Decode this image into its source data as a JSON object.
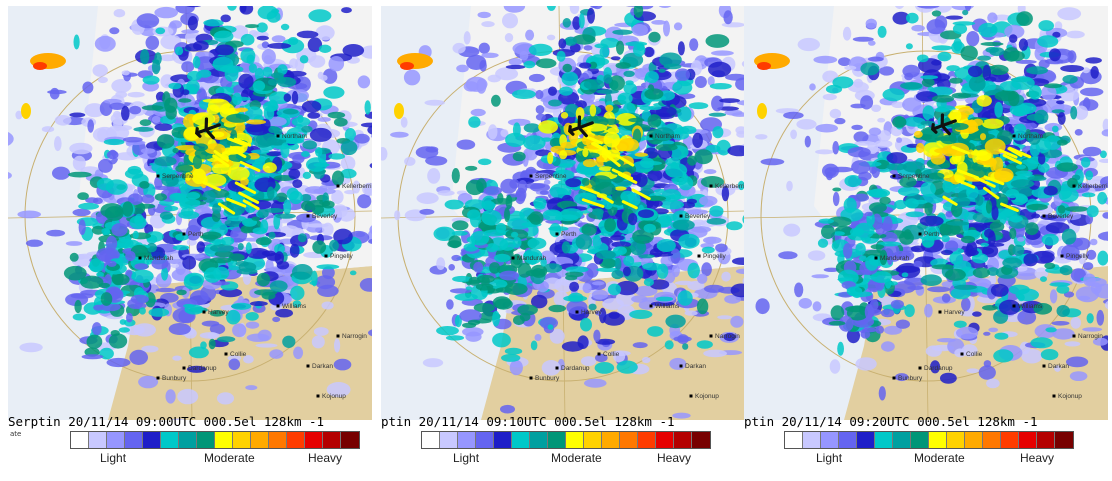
{
  "panels": [
    {
      "caption": "Serptin 20/11/14 09:00UTC 000.5el 128km -1",
      "site_fragment": "ate",
      "places": [
        "Serpentine",
        "Perth",
        "Mandurah",
        "Harvey",
        "Collie",
        "Bunbury",
        "Dardanup",
        "Darkan",
        "Narrogin",
        "Pingelly",
        "Kellerberrin",
        "Northam",
        "Beverley",
        "Williams",
        "Kojonup"
      ]
    },
    {
      "caption": "ptin 20/11/14 09:10UTC 000.5el 128km -1",
      "site_fragment": "",
      "places": [
        "Serpentine",
        "Perth",
        "Mandurah",
        "Harvey",
        "Collie",
        "Bunbury",
        "Dardanup",
        "Darkan",
        "Narrogin",
        "Pingelly",
        "Kellerberrin",
        "Northam",
        "Beverley",
        "Williams",
        "Kojonup"
      ]
    },
    {
      "caption": "ptin 20/11/14 09:20UTC 000.5el 128km -1",
      "site_fragment": "",
      "places": [
        "Serpentine",
        "Perth",
        "Mandurah",
        "Harvey",
        "Collie",
        "Bunbury",
        "Dardanup",
        "Darkan",
        "Narrogin",
        "Pingelly",
        "Kellerberrin",
        "Northam",
        "Beverley",
        "Williams",
        "Kojonup"
      ]
    }
  ],
  "legend": {
    "labels": {
      "light": "Light",
      "moderate": "Moderate",
      "heavy": "Heavy"
    },
    "colors": [
      "#ffffff",
      "#c8c8ff",
      "#9696ff",
      "#6464f0",
      "#1e1ec8",
      "#00c8c8",
      "#00a0a0",
      "#009678",
      "#ffff00",
      "#ffd200",
      "#ffaa00",
      "#ff7800",
      "#ff3c00",
      "#e60000",
      "#b40000",
      "#780000"
    ]
  },
  "icons": {
    "aircraft": "airplane-icon",
    "towns": "town-marker-icon"
  }
}
